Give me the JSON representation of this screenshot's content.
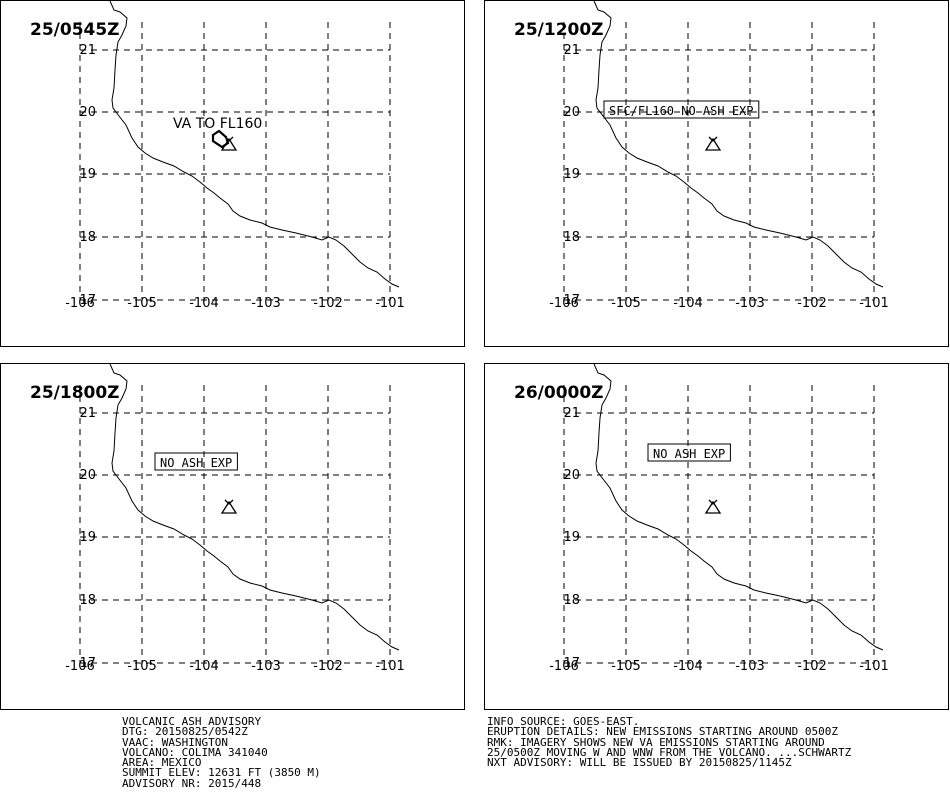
{
  "panels": [
    {
      "time": "25/0545Z",
      "label": "VA TO FL160",
      "boxed": false,
      "plume": true
    },
    {
      "time": "25/1200Z",
      "label": "SFC/FL160 NO ASH EXP",
      "boxed": true,
      "plume": false
    },
    {
      "time": "25/1800Z",
      "label": "NO ASH EXP",
      "boxed": true,
      "plume": false
    },
    {
      "time": "26/0000Z",
      "label": "NO ASH EXP",
      "boxed": true,
      "plume": false
    }
  ],
  "axes": {
    "lat_labels": [
      "21",
      "20",
      "19",
      "18",
      "17"
    ],
    "lon_labels": [
      "-106",
      "-105",
      "-104",
      "-103",
      "-102",
      "-101"
    ]
  },
  "advisory_left": [
    "VOLCANIC ASH ADVISORY",
    "DTG: 20150825/0542Z",
    "VAAC: WASHINGTON",
    "VOLCANO: COLIMA 341040",
    "AREA: MEXICO",
    "SUMMIT ELEV: 12631 FT (3850 M)",
    "ADVISORY NR: 2015/448"
  ],
  "advisory_right": [
    "INFO SOURCE: GOES-EAST.",
    "ERUPTION DETAILS: NEW EMISSIONS STARTING AROUND 0500Z",
    "RMK: IMAGERY SHOWS NEW VA EMISSIONS STARTING AROUND",
    "25/0500Z MOVING W AND WNW FROM THE VOLCANO. ...SCHWARTZ",
    "NXT ADVISORY: WILL BE ISSUED BY 20150825/1145Z"
  ],
  "colors": {
    "line": "#000000",
    "background": "#ffffff"
  }
}
